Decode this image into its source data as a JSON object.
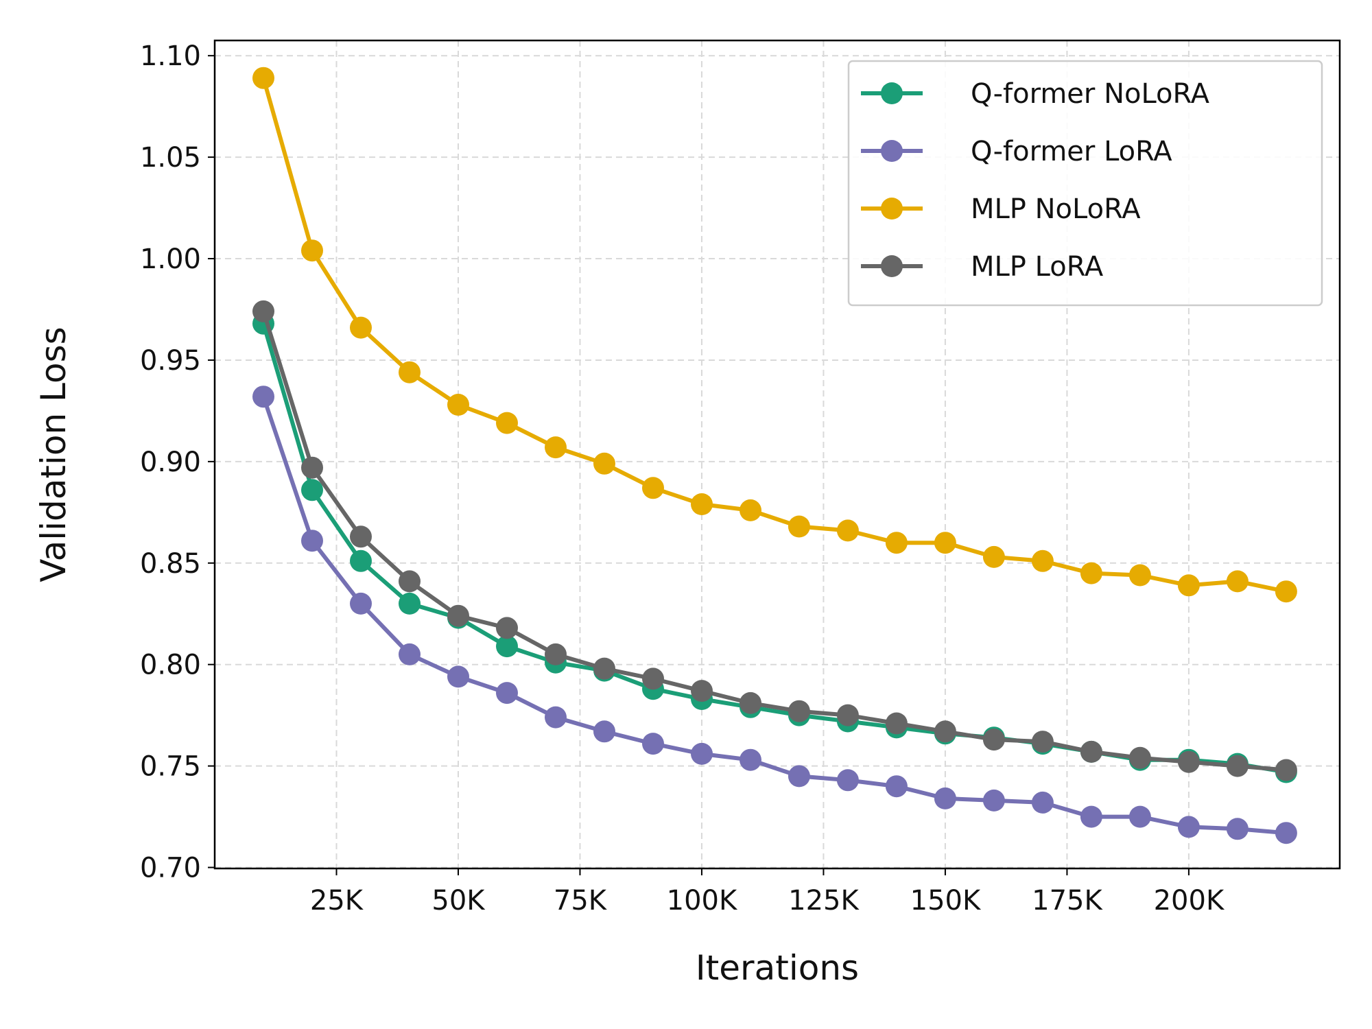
{
  "chart_data": {
    "type": "line",
    "title": "",
    "xlabel": "Iterations",
    "ylabel": "Validation Loss",
    "xlim": [
      0,
      231000
    ],
    "ylim": [
      0.6995,
      1.1075
    ],
    "x_ticks": [
      25000,
      50000,
      75000,
      100000,
      125000,
      150000,
      175000,
      200000
    ],
    "x_tick_labels": [
      "25K",
      "50K",
      "75K",
      "100K",
      "125K",
      "150K",
      "175K",
      "200K"
    ],
    "y_ticks": [
      0.7,
      0.75,
      0.8,
      0.85,
      0.9,
      0.95,
      1.0,
      1.05,
      1.1
    ],
    "y_tick_labels": [
      "0.70",
      "0.75",
      "0.80",
      "0.85",
      "0.90",
      "0.95",
      "1.00",
      "1.05",
      "1.10"
    ],
    "grid": true,
    "legend_position": "top-right",
    "x": [
      10000,
      20000,
      30000,
      40000,
      50000,
      60000,
      70000,
      80000,
      90000,
      100000,
      110000,
      120000,
      130000,
      140000,
      150000,
      160000,
      170000,
      180000,
      190000,
      200000,
      210000,
      220000
    ],
    "series": [
      {
        "name": "Q-former NoLoRA",
        "color": "#1b9e77",
        "values": [
          0.968,
          0.886,
          0.851,
          0.83,
          0.823,
          0.809,
          0.801,
          0.797,
          0.788,
          0.783,
          0.779,
          0.775,
          0.772,
          0.769,
          0.766,
          0.764,
          0.761,
          0.757,
          0.753,
          0.753,
          0.751,
          0.747
        ]
      },
      {
        "name": "Q-former LoRA",
        "color": "#7570b3",
        "values": [
          0.932,
          0.861,
          0.83,
          0.805,
          0.794,
          0.786,
          0.774,
          0.767,
          0.761,
          0.756,
          0.753,
          0.745,
          0.743,
          0.74,
          0.734,
          0.733,
          0.732,
          0.725,
          0.725,
          0.72,
          0.719,
          0.717
        ]
      },
      {
        "name": "MLP NoLoRA",
        "color": "#e6ab02",
        "values": [
          1.089,
          1.004,
          0.966,
          0.944,
          0.928,
          0.919,
          0.907,
          0.899,
          0.887,
          0.879,
          0.876,
          0.868,
          0.866,
          0.86,
          0.86,
          0.853,
          0.851,
          0.845,
          0.844,
          0.839,
          0.841,
          0.836
        ]
      },
      {
        "name": "MLP LoRA",
        "color": "#666666",
        "values": [
          0.974,
          0.897,
          0.863,
          0.841,
          0.824,
          0.818,
          0.805,
          0.798,
          0.793,
          0.787,
          0.781,
          0.777,
          0.775,
          0.771,
          0.767,
          0.763,
          0.762,
          0.757,
          0.754,
          0.752,
          0.75,
          0.748
        ]
      }
    ]
  }
}
